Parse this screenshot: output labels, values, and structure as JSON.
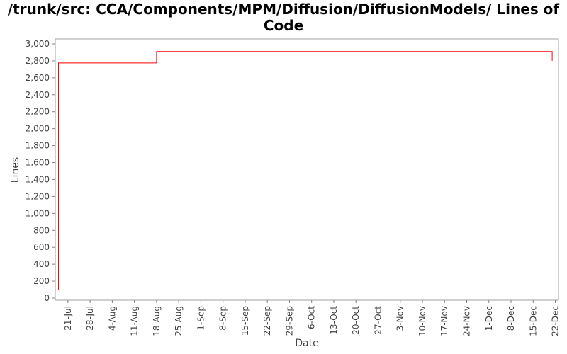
{
  "chart_data": {
    "type": "line",
    "title_line1": "/trunk/src: CCA/Components/MPM/Diffusion/DiffusionModels/ Lines of",
    "title_line2": "Code",
    "xlabel": "Date",
    "ylabel": "Lines",
    "x_tick_labels": [
      "21-Jul",
      "28-Jul",
      "4-Aug",
      "11-Aug",
      "18-Aug",
      "25-Aug",
      "1-Sep",
      "8-Sep",
      "15-Sep",
      "22-Sep",
      "29-Sep",
      "6-Oct",
      "13-Oct",
      "20-Oct",
      "27-Oct",
      "3-Nov",
      "10-Nov",
      "17-Nov",
      "24-Nov",
      "1-Dec",
      "8-Dec",
      "15-Dec",
      "22-Dec"
    ],
    "y_ticks": [
      0,
      200,
      400,
      600,
      800,
      1000,
      1200,
      1400,
      1600,
      1800,
      2000,
      2200,
      2400,
      2600,
      2800,
      3000
    ],
    "y_tick_labels": [
      "0",
      "200",
      "400",
      "600",
      "800",
      "1,000",
      "1,200",
      "1,400",
      "1,600",
      "1,800",
      "2,000",
      "2,200",
      "2,400",
      "2,600",
      "2,800",
      "3,000"
    ],
    "ylim": [
      0,
      3000
    ],
    "xlim": [
      "2008-07-17",
      "2008-12-23"
    ],
    "grid": false,
    "line_color": "#ff0000",
    "series": [
      {
        "step": true,
        "x": [
          "2008-07-18",
          "2008-07-18",
          "2008-08-18",
          "2008-12-21",
          "2008-12-21"
        ],
        "y": [
          100,
          2775,
          2910,
          2910,
          2800
        ]
      }
    ]
  }
}
